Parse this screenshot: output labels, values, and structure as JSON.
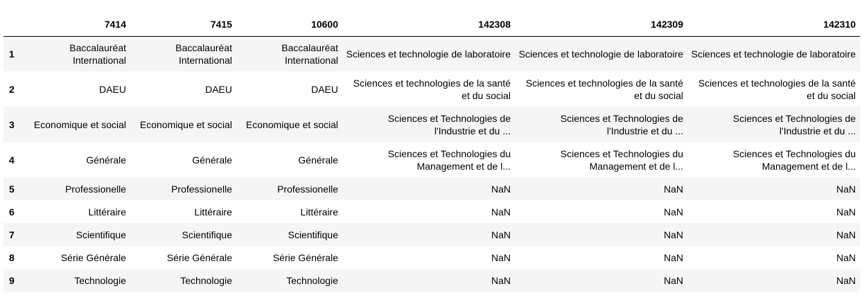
{
  "columns": [
    "",
    "7414",
    "7415",
    "10600",
    "142308",
    "142309",
    "142310"
  ],
  "rows": [
    {
      "index": "1",
      "cells": [
        "Baccalauréat International",
        "Baccalauréat International",
        "Baccalauréat International",
        "Sciences et technologie de laboratoire",
        "Sciences et technologie de laboratoire",
        "Sciences et technologie de laboratoire"
      ]
    },
    {
      "index": "2",
      "cells": [
        "DAEU",
        "DAEU",
        "DAEU",
        "Sciences et technologies de la santé et du social",
        "Sciences et technologies de la santé et du social",
        "Sciences et technologies de la santé et du social"
      ]
    },
    {
      "index": "3",
      "cells": [
        "Economique et social",
        "Economique et social",
        "Economique et social",
        "Sciences et Technologies de l'Industrie et du ...",
        "Sciences et Technologies de l'Industrie et du ...",
        "Sciences et Technologies de l'Industrie et du ..."
      ]
    },
    {
      "index": "4",
      "cells": [
        "Générale",
        "Générale",
        "Générale",
        "Sciences et Technologies du Management et de l...",
        "Sciences et Technologies du Management et de l...",
        "Sciences et Technologies du Management et de l..."
      ]
    },
    {
      "index": "5",
      "cells": [
        "Professionelle",
        "Professionelle",
        "Professionelle",
        "NaN",
        "NaN",
        "NaN"
      ]
    },
    {
      "index": "6",
      "cells": [
        "Littéraire",
        "Littéraire",
        "Littéraire",
        "NaN",
        "NaN",
        "NaN"
      ]
    },
    {
      "index": "7",
      "cells": [
        "Scientifique",
        "Scientifique",
        "Scientifique",
        "NaN",
        "NaN",
        "NaN"
      ]
    },
    {
      "index": "8",
      "cells": [
        "Série Générale",
        "Série Générale",
        "Série Générale",
        "NaN",
        "NaN",
        "NaN"
      ]
    },
    {
      "index": "9",
      "cells": [
        "Technologie",
        "Technologie",
        "Technologie",
        "NaN",
        "NaN",
        "NaN"
      ]
    }
  ]
}
